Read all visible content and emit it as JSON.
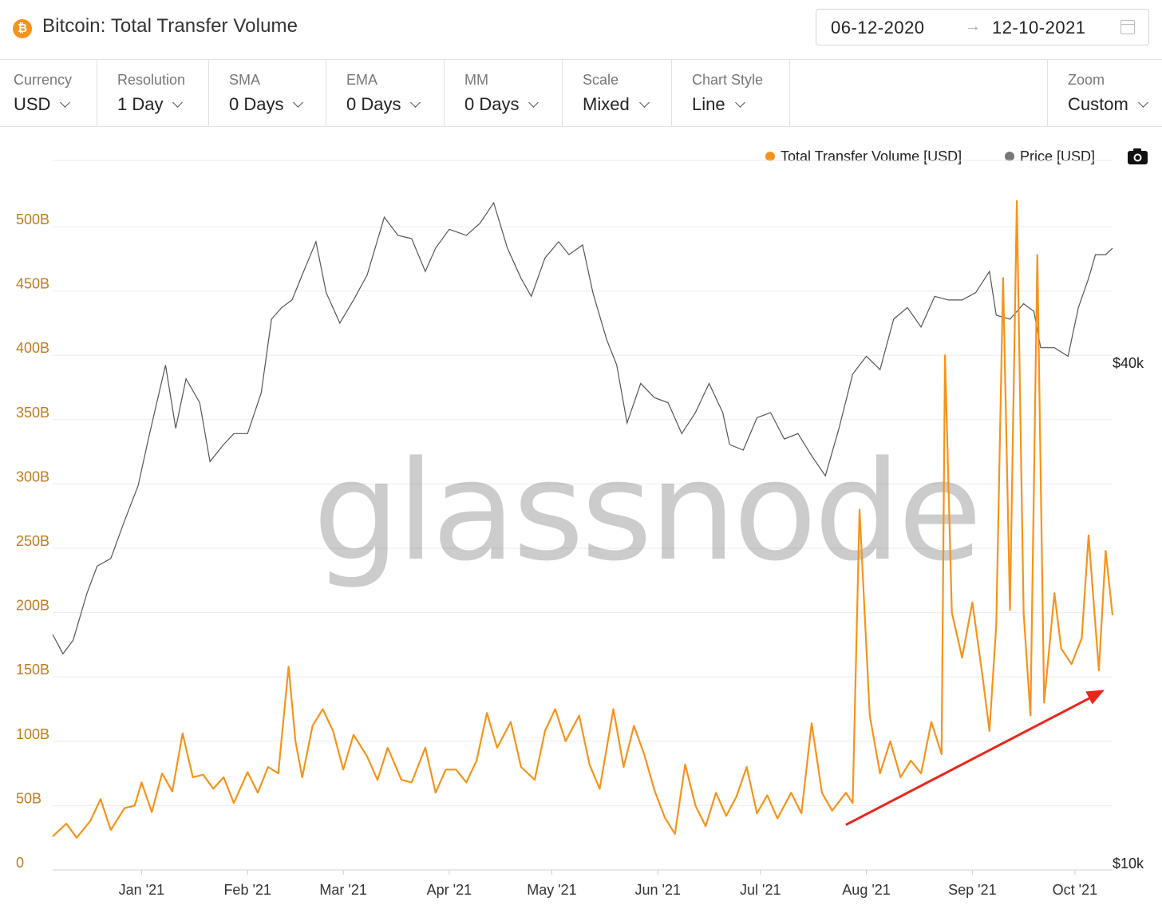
{
  "header": {
    "icon": "bitcoin-icon",
    "title": "Bitcoin: Total Transfer Volume",
    "date_from": "06-12-2020",
    "date_arrow": "→",
    "date_to": "12-10-2021"
  },
  "controls": [
    {
      "label": "Currency",
      "value": "USD"
    },
    {
      "label": "Resolution",
      "value": "1 Day"
    },
    {
      "label": "SMA",
      "value": "0 Days"
    },
    {
      "label": "EMA",
      "value": "0 Days"
    },
    {
      "label": "MM",
      "value": "0 Days"
    },
    {
      "label": "Scale",
      "value": "Mixed"
    },
    {
      "label": "Chart Style",
      "value": "Line"
    }
  ],
  "zoom": {
    "label": "Zoom",
    "value": "Custom"
  },
  "colors": {
    "volume": "#f7931a",
    "price": "#555555",
    "arrow": "#e8271c"
  },
  "chart_data": {
    "type": "line",
    "x_range": [
      "2020-12-06",
      "2021-10-12"
    ],
    "x_ticks": [
      "Jan '21",
      "Feb '21",
      "Mar '21",
      "Apr '21",
      "May '21",
      "Jun '21",
      "Jul '21",
      "Aug '21",
      "Sep '21",
      "Oct '21"
    ],
    "y_left": {
      "ticks": [
        "0",
        "50B",
        "100B",
        "150B",
        "200B",
        "250B",
        "300B",
        "350B",
        "400B",
        "450B",
        "500B"
      ],
      "range": [
        0,
        500
      ],
      "unit": "B USD"
    },
    "y_right": {
      "ticks": [
        "$10k",
        "$40k"
      ],
      "scale": "log",
      "range": [
        10000,
        70000
      ]
    },
    "legend": [
      "Total Transfer Volume [USD]",
      "Price [USD]"
    ],
    "legend_placement": "top-right",
    "watermark": "glassnode",
    "grid": true,
    "annotation": {
      "type": "arrow",
      "color": "red",
      "from": [
        "2021-07-26",
        35
      ],
      "to": [
        "2021-10-12",
        140
      ]
    },
    "series": [
      {
        "name": "Total Transfer Volume [USD]",
        "axis": "left",
        "color": "#f7931a",
        "points": [
          [
            "2020-12-06",
            26
          ],
          [
            "2020-12-10",
            36
          ],
          [
            "2020-12-13",
            25
          ],
          [
            "2020-12-17",
            38
          ],
          [
            "2020-12-20",
            55
          ],
          [
            "2020-12-23",
            31
          ],
          [
            "2020-12-27",
            48
          ],
          [
            "2020-12-30",
            50
          ],
          [
            "2021-01-01",
            68
          ],
          [
            "2021-01-04",
            45
          ],
          [
            "2021-01-07",
            75
          ],
          [
            "2021-01-10",
            61
          ],
          [
            "2021-01-13",
            106
          ],
          [
            "2021-01-16",
            72
          ],
          [
            "2021-01-19",
            74
          ],
          [
            "2021-01-22",
            63
          ],
          [
            "2021-01-25",
            72
          ],
          [
            "2021-01-28",
            52
          ],
          [
            "2021-02-01",
            76
          ],
          [
            "2021-02-04",
            60
          ],
          [
            "2021-02-07",
            80
          ],
          [
            "2021-02-10",
            75
          ],
          [
            "2021-02-13",
            158
          ],
          [
            "2021-02-15",
            100
          ],
          [
            "2021-02-17",
            72
          ],
          [
            "2021-02-20",
            112
          ],
          [
            "2021-02-23",
            125
          ],
          [
            "2021-02-26",
            108
          ],
          [
            "2021-03-01",
            78
          ],
          [
            "2021-03-04",
            105
          ],
          [
            "2021-03-08",
            88
          ],
          [
            "2021-03-11",
            70
          ],
          [
            "2021-03-14",
            95
          ],
          [
            "2021-03-18",
            70
          ],
          [
            "2021-03-21",
            68
          ],
          [
            "2021-03-25",
            95
          ],
          [
            "2021-03-28",
            60
          ],
          [
            "2021-03-31",
            78
          ],
          [
            "2021-04-03",
            78
          ],
          [
            "2021-04-06",
            68
          ],
          [
            "2021-04-09",
            85
          ],
          [
            "2021-04-12",
            122
          ],
          [
            "2021-04-15",
            95
          ],
          [
            "2021-04-19",
            115
          ],
          [
            "2021-04-22",
            80
          ],
          [
            "2021-04-26",
            70
          ],
          [
            "2021-04-29",
            108
          ],
          [
            "2021-05-02",
            125
          ],
          [
            "2021-05-05",
            100
          ],
          [
            "2021-05-09",
            120
          ],
          [
            "2021-05-12",
            82
          ],
          [
            "2021-05-15",
            63
          ],
          [
            "2021-05-19",
            125
          ],
          [
            "2021-05-22",
            80
          ],
          [
            "2021-05-25",
            112
          ],
          [
            "2021-05-28",
            90
          ],
          [
            "2021-05-31",
            62
          ],
          [
            "2021-06-03",
            41
          ],
          [
            "2021-06-06",
            28
          ],
          [
            "2021-06-09",
            82
          ],
          [
            "2021-06-12",
            50
          ],
          [
            "2021-06-15",
            34
          ],
          [
            "2021-06-18",
            60
          ],
          [
            "2021-06-21",
            42
          ],
          [
            "2021-06-24",
            57
          ],
          [
            "2021-06-27",
            80
          ],
          [
            "2021-06-30",
            44
          ],
          [
            "2021-07-03",
            58
          ],
          [
            "2021-07-06",
            40
          ],
          [
            "2021-07-10",
            60
          ],
          [
            "2021-07-13",
            44
          ],
          [
            "2021-07-16",
            114
          ],
          [
            "2021-07-19",
            60
          ],
          [
            "2021-07-22",
            46
          ],
          [
            "2021-07-26",
            60
          ],
          [
            "2021-07-28",
            52
          ],
          [
            "2021-07-30",
            280
          ],
          [
            "2021-08-02",
            120
          ],
          [
            "2021-08-05",
            75
          ],
          [
            "2021-08-08",
            100
          ],
          [
            "2021-08-11",
            72
          ],
          [
            "2021-08-14",
            85
          ],
          [
            "2021-08-17",
            75
          ],
          [
            "2021-08-20",
            115
          ],
          [
            "2021-08-23",
            90
          ],
          [
            "2021-08-24",
            400
          ],
          [
            "2021-08-26",
            200
          ],
          [
            "2021-08-29",
            165
          ],
          [
            "2021-09-01",
            208
          ],
          [
            "2021-09-04",
            150
          ],
          [
            "2021-09-06",
            108
          ],
          [
            "2021-09-08",
            190
          ],
          [
            "2021-09-10",
            460
          ],
          [
            "2021-09-12",
            202
          ],
          [
            "2021-09-14",
            520
          ],
          [
            "2021-09-16",
            200
          ],
          [
            "2021-09-18",
            120
          ],
          [
            "2021-09-20",
            478
          ],
          [
            "2021-09-22",
            130
          ],
          [
            "2021-09-25",
            215
          ],
          [
            "2021-09-27",
            172
          ],
          [
            "2021-09-30",
            160
          ],
          [
            "2021-10-03",
            180
          ],
          [
            "2021-10-05",
            260
          ],
          [
            "2021-10-08",
            155
          ],
          [
            "2021-10-10",
            248
          ],
          [
            "2021-10-12",
            198
          ]
        ]
      },
      {
        "name": "Price [USD]",
        "axis": "right",
        "color": "#555555",
        "points": [
          [
            "2020-12-06",
            19200
          ],
          [
            "2020-12-09",
            18200
          ],
          [
            "2020-12-12",
            18900
          ],
          [
            "2020-12-16",
            21500
          ],
          [
            "2020-12-19",
            23200
          ],
          [
            "2020-12-23",
            23700
          ],
          [
            "2020-12-27",
            26300
          ],
          [
            "2020-12-31",
            29000
          ],
          [
            "2021-01-03",
            33000
          ],
          [
            "2021-01-08",
            40500
          ],
          [
            "2021-01-11",
            34000
          ],
          [
            "2021-01-14",
            39000
          ],
          [
            "2021-01-18",
            36500
          ],
          [
            "2021-01-21",
            31000
          ],
          [
            "2021-01-25",
            32500
          ],
          [
            "2021-01-28",
            33500
          ],
          [
            "2021-02-01",
            33500
          ],
          [
            "2021-02-05",
            37500
          ],
          [
            "2021-02-08",
            46000
          ],
          [
            "2021-02-11",
            47500
          ],
          [
            "2021-02-14",
            48500
          ],
          [
            "2021-02-17",
            52000
          ],
          [
            "2021-02-21",
            57000
          ],
          [
            "2021-02-24",
            49500
          ],
          [
            "2021-02-28",
            45500
          ],
          [
            "2021-03-04",
            48500
          ],
          [
            "2021-03-08",
            52000
          ],
          [
            "2021-03-13",
            61000
          ],
          [
            "2021-03-17",
            58000
          ],
          [
            "2021-03-21",
            57500
          ],
          [
            "2021-03-25",
            52500
          ],
          [
            "2021-03-28",
            56000
          ],
          [
            "2021-04-01",
            59000
          ],
          [
            "2021-04-06",
            58000
          ],
          [
            "2021-04-10",
            60000
          ],
          [
            "2021-04-14",
            63500
          ],
          [
            "2021-04-18",
            56000
          ],
          [
            "2021-04-22",
            51500
          ],
          [
            "2021-04-25",
            49000
          ],
          [
            "2021-04-29",
            54500
          ],
          [
            "2021-05-03",
            57000
          ],
          [
            "2021-05-06",
            55000
          ],
          [
            "2021-05-10",
            56500
          ],
          [
            "2021-05-13",
            49500
          ],
          [
            "2021-05-17",
            43500
          ],
          [
            "2021-05-20",
            40500
          ],
          [
            "2021-05-23",
            34500
          ],
          [
            "2021-05-27",
            38500
          ],
          [
            "2021-05-31",
            37000
          ],
          [
            "2021-06-04",
            36500
          ],
          [
            "2021-06-08",
            33500
          ],
          [
            "2021-06-12",
            35500
          ],
          [
            "2021-06-16",
            38500
          ],
          [
            "2021-06-20",
            35500
          ],
          [
            "2021-06-22",
            32500
          ],
          [
            "2021-06-26",
            32000
          ],
          [
            "2021-06-30",
            35000
          ],
          [
            "2021-07-04",
            35500
          ],
          [
            "2021-07-08",
            33000
          ],
          [
            "2021-07-12",
            33500
          ],
          [
            "2021-07-16",
            31500
          ],
          [
            "2021-07-20",
            29800
          ],
          [
            "2021-07-24",
            34000
          ],
          [
            "2021-07-28",
            39500
          ],
          [
            "2021-08-01",
            41500
          ],
          [
            "2021-08-05",
            40000
          ],
          [
            "2021-08-09",
            46000
          ],
          [
            "2021-08-13",
            47500
          ],
          [
            "2021-08-17",
            45000
          ],
          [
            "2021-08-21",
            49000
          ],
          [
            "2021-08-25",
            48500
          ],
          [
            "2021-08-29",
            48500
          ],
          [
            "2021-09-02",
            49500
          ],
          [
            "2021-09-06",
            52500
          ],
          [
            "2021-09-08",
            46500
          ],
          [
            "2021-09-12",
            46000
          ],
          [
            "2021-09-16",
            48000
          ],
          [
            "2021-09-19",
            47000
          ],
          [
            "2021-09-21",
            42500
          ],
          [
            "2021-09-25",
            42500
          ],
          [
            "2021-09-29",
            41500
          ],
          [
            "2021-10-02",
            47500
          ],
          [
            "2021-10-05",
            51500
          ],
          [
            "2021-10-07",
            55000
          ],
          [
            "2021-10-10",
            55000
          ],
          [
            "2021-10-12",
            56000
          ]
        ]
      }
    ]
  }
}
